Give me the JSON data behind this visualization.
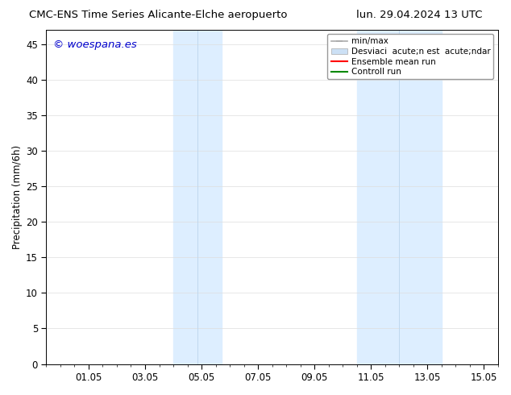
{
  "title_left": "CMC-ENS Time Series Alicante-Elche aeropuerto",
  "title_right": "lun. 29.04.2024 13 UTC",
  "ylabel": "Precipitation (mm/6h)",
  "ylim": [
    0,
    47
  ],
  "yticks": [
    0,
    5,
    10,
    15,
    20,
    25,
    30,
    35,
    40,
    45
  ],
  "xlabel": "",
  "background_color": "#ffffff",
  "plot_bg_color": "#ffffff",
  "watermark": "© woespana.es",
  "watermark_color": "#0000cc",
  "legend_entries": [
    "min/max",
    "Desviaci  acute;n est  acute;ndar",
    "Ensemble mean run",
    "Controll run"
  ],
  "legend_line_colors": [
    "#aaaaaa",
    "#cce0f5",
    "#ff0000",
    "#008800"
  ],
  "shaded_regions": [
    {
      "xstart": 4.0,
      "xend": 5.7,
      "color": "#ddeeff",
      "divider": 4.85
    },
    {
      "xstart": 10.5,
      "xend": 13.5,
      "color": "#ddeeff",
      "divider": 12.0
    }
  ],
  "xmin": -0.5,
  "xmax": 15.5,
  "xtick_positions": [
    1,
    3,
    5,
    7,
    9,
    11,
    13,
    15
  ],
  "xtick_labels": [
    "01.05",
    "03.05",
    "05.05",
    "07.05",
    "09.05",
    "11.05",
    "13.05",
    "15.05"
  ],
  "grid_color": "#dddddd",
  "spine_color": "#000000",
  "tick_color": "#000000",
  "font_size": 8.5,
  "title_font_size": 9.5,
  "legend_fontsize": 7.5
}
